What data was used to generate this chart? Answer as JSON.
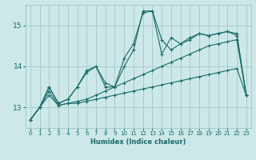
{
  "xlabel": "Humidex (Indice chaleur)",
  "background_color": "#cce8e8",
  "line_color": "#1a6b6b",
  "grid_color": "#aacccc",
  "x_values": [
    0,
    1,
    2,
    3,
    4,
    5,
    6,
    7,
    8,
    9,
    10,
    11,
    12,
    13,
    14,
    15,
    16,
    17,
    18,
    19,
    20,
    21,
    22,
    23
  ],
  "series": [
    [
      12.7,
      13.0,
      13.3,
      13.05,
      13.1,
      13.1,
      13.15,
      13.2,
      13.25,
      13.3,
      13.35,
      13.4,
      13.45,
      13.5,
      13.55,
      13.6,
      13.65,
      13.7,
      13.75,
      13.8,
      13.85,
      13.9,
      13.95,
      13.3
    ],
    [
      12.7,
      13.0,
      13.4,
      13.05,
      13.1,
      13.15,
      13.2,
      13.3,
      13.4,
      13.5,
      13.6,
      13.7,
      13.8,
      13.9,
      14.0,
      14.1,
      14.2,
      14.3,
      14.4,
      14.5,
      14.55,
      14.6,
      14.65,
      13.3
    ],
    [
      12.7,
      13.0,
      13.5,
      13.1,
      13.2,
      13.5,
      13.9,
      14.0,
      13.6,
      13.5,
      14.2,
      14.55,
      15.3,
      15.35,
      14.3,
      14.7,
      14.55,
      14.7,
      14.8,
      14.75,
      14.8,
      14.85,
      14.75,
      13.3
    ],
    [
      12.7,
      13.0,
      13.5,
      13.1,
      13.2,
      13.5,
      13.85,
      14.0,
      13.5,
      13.5,
      14.0,
      14.4,
      15.35,
      15.35,
      14.65,
      14.4,
      14.55,
      14.65,
      14.8,
      14.75,
      14.8,
      14.85,
      14.8,
      13.3
    ]
  ],
  "ylim": [
    12.5,
    15.5
  ],
  "xlim": [
    -0.5,
    23.5
  ],
  "yticks": [
    13,
    14,
    15
  ],
  "xticks": [
    0,
    1,
    2,
    3,
    4,
    5,
    6,
    7,
    8,
    9,
    10,
    11,
    12,
    13,
    14,
    15,
    16,
    17,
    18,
    19,
    20,
    21,
    22,
    23
  ]
}
